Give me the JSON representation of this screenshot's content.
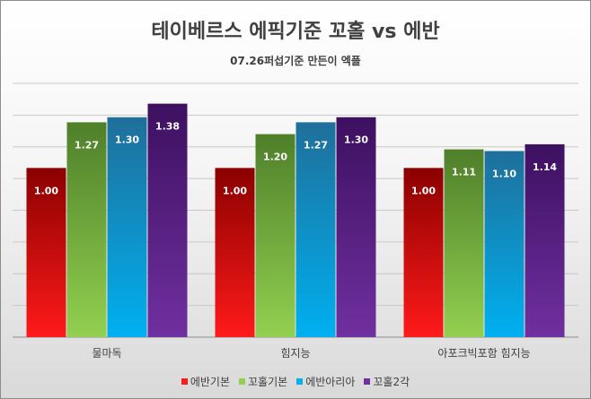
{
  "chart_data": {
    "type": "bar",
    "title": "테이베르스 에픽기준 꼬홀 vs 에반",
    "subtitle": "07.26퍼섭기준 만든이 엑플",
    "categories": [
      "물마독",
      "힘지능",
      "아포크빅포함 힘지능"
    ],
    "series": [
      {
        "name": "에반기본",
        "values": [
          1.0,
          1.0,
          1.0
        ],
        "colors": [
          "#ff1a1a",
          "#8b0000"
        ]
      },
      {
        "name": "꼬홀기본",
        "values": [
          1.27,
          1.2,
          1.11
        ],
        "colors": [
          "#92d050",
          "#4f7f2a"
        ]
      },
      {
        "name": "에반아리아",
        "values": [
          1.3,
          1.27,
          1.1
        ],
        "colors": [
          "#00b0f0",
          "#1f6f9a"
        ]
      },
      {
        "name": "꼬홀2각",
        "values": [
          1.38,
          1.3,
          1.14
        ],
        "colors": [
          "#7030a0",
          "#3d1060"
        ]
      }
    ],
    "value_labels": [
      [
        "1.00",
        "1.00",
        "1.00"
      ],
      [
        "1.27",
        "1.20",
        "1.11"
      ],
      [
        "1.30",
        "1.27",
        "1.10"
      ],
      [
        "1.38",
        "1.30",
        "1.14"
      ]
    ],
    "ylim": [
      0,
      1.5
    ],
    "grid": true,
    "legend": "bottom",
    "xlabel": "",
    "ylabel": ""
  }
}
